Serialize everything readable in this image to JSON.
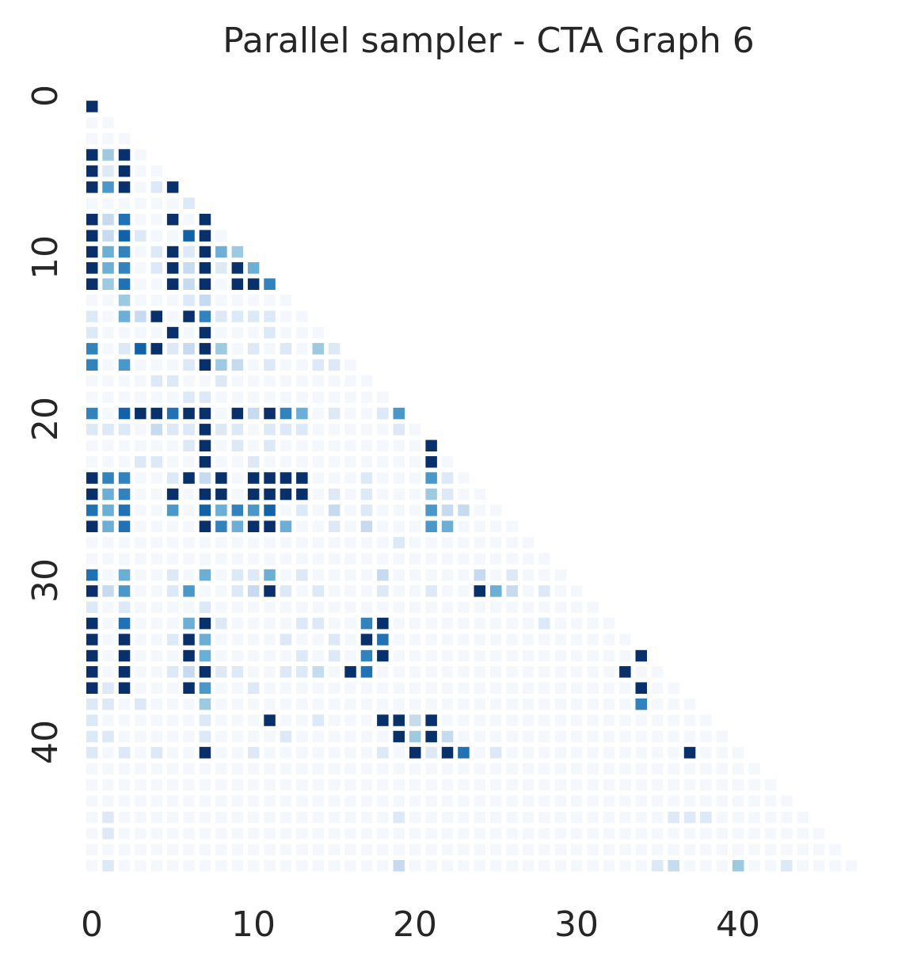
{
  "chart_data": {
    "type": "heatmap",
    "title": "Parallel sampler - CTA Graph 6",
    "xlabel": "",
    "ylabel": "",
    "n": 49,
    "mask": "lower-triangle-including-diagonal",
    "colormap": "Blues",
    "colorbar": false,
    "grid": false,
    "xticks": [
      0,
      10,
      20,
      30,
      40
    ],
    "yticks": [
      0,
      10,
      20,
      30,
      40
    ],
    "colors": {
      "text": "#262626",
      "background": "#ffffff"
    },
    "rows": [
      "9",
      "A3",
      "111",
      "111A",
      "A4A11",
      "A2A113",
      "A6A12A7",
      "1111112113",
      "A3811A1A22",
      "A392119A1361",
      "A5712A2A5482",
      "A5712A3A2A594",
      "A4811A3A1AA7B5",
      "1141112311111111",
      "2153A1A722221121",
      "21111A1A1112111141",
      "7129A23A4121214281",
      "7161112A431211221281",
      "11112211211111111111",
      "1111112211111111111",
      "719AA8AA1A3A75121126B",
      "2221322A2212221111121B",
      "1111112A1212111111111A3",
      "1112211A1121111111111A1A",
      "A77112A3A1AAAA1112111621141",
      "A5711A1AA1AAAA1212111421124B",
      "858116195769121312111633111B",
      "A581111A75AA51121311165111111BA",
      "1111111111111111111211111111111",
      "1111111111111111111111111111111",
      "8151121512251211113111113121111111",
      "A3611261123A212111211211A53121111A",
      "2121111211111111111111111111111111",
      "A181115A2111122117A11111111121111111",
      "A1A112A5111121121A811111111111111",
      "A1A111A51111121217A111111111111111A",
      "A1A1123A22112231A8111111111111111A1",
      "A2A111A611211111111111111111111111A1",
      "2212111411111111111111111111111111711",
      "21111112111A112111AA3A11111111111111111",
      "2211111211112111111A4A3111111111111111111",
      "2121211A112111111121A2A81211111111111A1",
      "111111111111111111111111111111111111111",
      "1111111111111111111111111111111111111111",
      "1111111111111111111111111111111111111111",
      "1211111111111111111211111111111111112221",
      "12111111111111111111111111111111111111111",
      "1111111111111111111111111111111111111111111",
      "121111111111111111131111111111111112311141121"
    ]
  }
}
